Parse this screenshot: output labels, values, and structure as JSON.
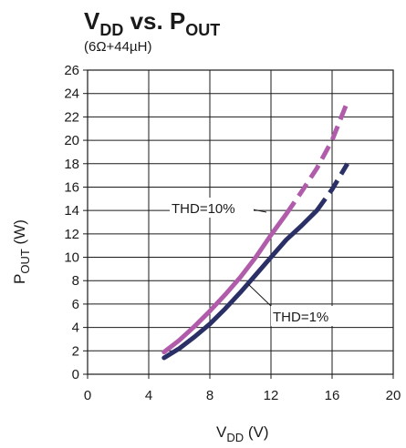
{
  "chart_data": {
    "type": "line",
    "title_main_1": "V",
    "title_sub_1": "DD",
    "title_main_2": " vs. P",
    "title_sub_2": "OUT",
    "subtitle": "(6Ω+44µH)",
    "xlabel_main": "V",
    "xlabel_sub": "DD",
    "xlabel_unit": " (V)",
    "ylabel_main": "P",
    "ylabel_sub": "OUT",
    "ylabel_unit": " (W)",
    "xlim": [
      0,
      20
    ],
    "ylim": [
      0,
      26
    ],
    "x_ticks": [
      0,
      4,
      8,
      12,
      16,
      20
    ],
    "y_ticks": [
      0,
      2,
      4,
      6,
      8,
      10,
      12,
      14,
      16,
      18,
      20,
      22,
      24,
      26
    ],
    "grid": true,
    "annotations": [
      {
        "text": "THD=10%"
      },
      {
        "text": "THD=1%"
      }
    ],
    "series": [
      {
        "label": "THD=10%",
        "color": "#b05cab",
        "solid": [
          [
            5,
            1.9
          ],
          [
            6,
            2.9
          ],
          [
            7,
            4.1
          ],
          [
            8,
            5.4
          ],
          [
            9,
            6.8
          ],
          [
            10,
            8.3
          ],
          [
            11,
            10.0
          ],
          [
            12,
            11.9
          ],
          [
            13,
            13.7
          ]
        ],
        "dashed": [
          [
            13,
            13.7
          ],
          [
            14,
            15.6
          ],
          [
            15,
            17.6
          ],
          [
            16,
            20.0
          ],
          [
            17,
            23.3
          ]
        ]
      },
      {
        "label": "THD=1%",
        "color": "#2a2f66",
        "solid": [
          [
            5,
            1.4
          ],
          [
            6,
            2.2
          ],
          [
            7,
            3.2
          ],
          [
            8,
            4.3
          ],
          [
            9,
            5.6
          ],
          [
            10,
            7.0
          ],
          [
            11,
            8.5
          ],
          [
            12,
            10.0
          ],
          [
            13,
            11.5
          ],
          [
            14,
            12.7
          ],
          [
            15,
            14.0
          ]
        ],
        "dashed": [
          [
            15,
            14.0
          ],
          [
            16,
            15.8
          ],
          [
            17,
            18.0
          ]
        ]
      }
    ]
  }
}
